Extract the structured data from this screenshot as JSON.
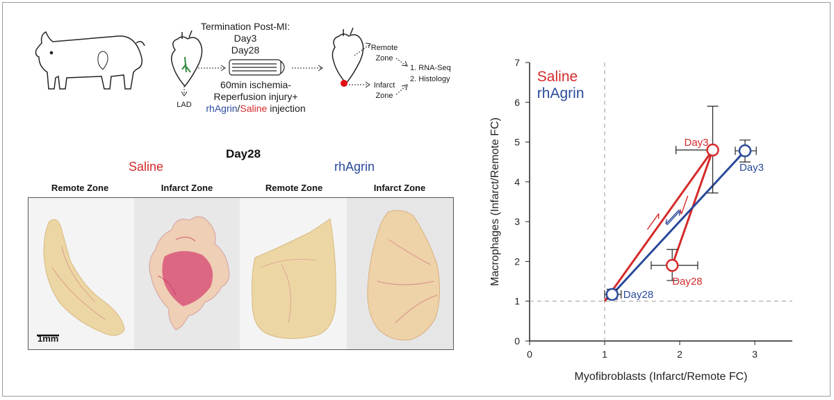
{
  "schematic": {
    "lad_label": "LAD",
    "termination_lines": [
      "Termination Post-MI:",
      "Day3",
      "Day28"
    ],
    "procedure_lines": [
      "60min ischemia-",
      "Reperfusion injury+"
    ],
    "injection_agrin": "rhAgrin",
    "injection_sep": "/",
    "injection_saline": "Saline",
    "injection_suffix": " injection",
    "remote_zone_lines": [
      "Remote",
      "Zone"
    ],
    "infarct_zone_lines": [
      "Infarct",
      "Zone"
    ],
    "analysis_lines": [
      "1. RNA-Seq",
      "2. Histology"
    ]
  },
  "histology": {
    "title": "Day28",
    "group_saline": "Saline",
    "group_agrin": "rhAgrin",
    "zones": [
      "Remote Zone",
      "Infarct Zone",
      "Remote Zone",
      "Infarct Zone"
    ],
    "scale_bar": "1mm"
  },
  "colors": {
    "saline": "#d42a2a",
    "agrin": "#2a4a9a"
  },
  "chart_data": {
    "type": "line",
    "xlabel": "Myofibroblasts (Infarct/Remote FC)",
    "ylabel": "Macrophages (Infarct/Remote FC)",
    "xlim": [
      0,
      3.5
    ],
    "ylim": [
      0,
      7
    ],
    "xticks": [
      "0",
      "1",
      "2",
      "3"
    ],
    "yticks": [
      "0",
      "1",
      "2",
      "3",
      "4",
      "5",
      "6",
      "7"
    ],
    "reference_lines": {
      "x": 1,
      "y": 1
    },
    "legend": [
      {
        "name": "Saline",
        "color": "#d42a2a"
      },
      {
        "name": "rhAgrin",
        "color": "#2a4a9a"
      }
    ],
    "series": [
      {
        "name": "Saline",
        "color": "#d42a2a",
        "points": [
          {
            "label": "Day3",
            "x": 2.44,
            "y": 4.8,
            "xerr": [
              1.95,
              2.44
            ],
            "yerr": [
              3.72,
              5.9
            ]
          },
          {
            "label": "Day28",
            "x": 1.9,
            "y": 1.9,
            "xerr": [
              1.62,
              2.24
            ],
            "yerr": [
              1.52,
              2.3
            ]
          }
        ],
        "origin": {
          "x": 1.0,
          "y": 1.0
        }
      },
      {
        "name": "rhAgrin",
        "color": "#2a4a9a",
        "points": [
          {
            "label": "Day3",
            "x": 2.87,
            "y": 4.78,
            "xerr": [
              2.74,
              3.02
            ],
            "yerr": [
              4.5,
              5.05
            ]
          },
          {
            "label": "Day28",
            "x": 1.1,
            "y": 1.17,
            "xerr": [
              1.0,
              1.22
            ],
            "yerr": [
              1.05,
              1.3
            ]
          }
        ]
      }
    ]
  }
}
